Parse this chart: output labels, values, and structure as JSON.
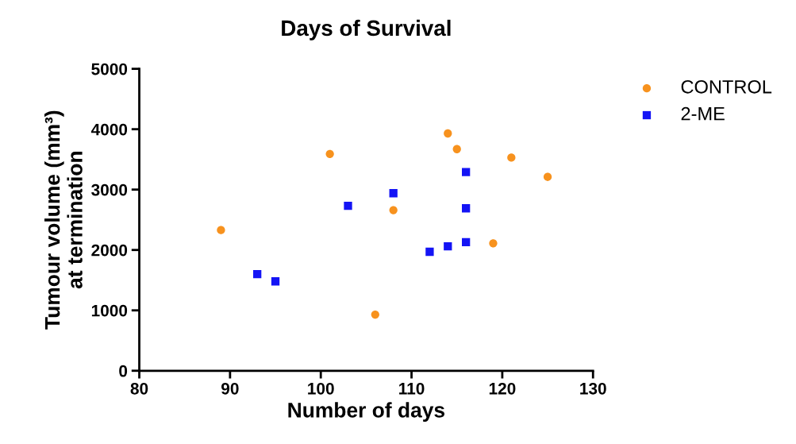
{
  "chart_data": {
    "type": "scatter",
    "title": "Days of Survival",
    "xlabel": "Number of days",
    "ylabel": "Tumour volume (mm³)\nat termination",
    "series": [
      {
        "name": "CONTROL",
        "color": "#f7921e",
        "marker": "circle",
        "x": [
          89,
          101,
          106,
          108,
          114,
          115,
          119,
          121,
          125
        ],
        "values": [
          2330,
          3590,
          930,
          2660,
          3930,
          3670,
          2110,
          3530,
          3210
        ]
      },
      {
        "name": "2-ME",
        "color": "#1414f5",
        "marker": "square",
        "x": [
          93,
          95,
          103,
          108,
          112,
          114,
          116,
          116,
          116
        ],
        "values": [
          1600,
          1480,
          2730,
          2940,
          1970,
          2060,
          2130,
          2690,
          3290
        ]
      }
    ],
    "xlim": [
      80,
      130
    ],
    "xticks": [
      80,
      90,
      100,
      110,
      120,
      130
    ],
    "ylim": [
      0,
      5000
    ],
    "yticks": [
      0,
      1000,
      2000,
      3000,
      4000,
      5000
    ],
    "grid": false,
    "legend": "top right"
  }
}
